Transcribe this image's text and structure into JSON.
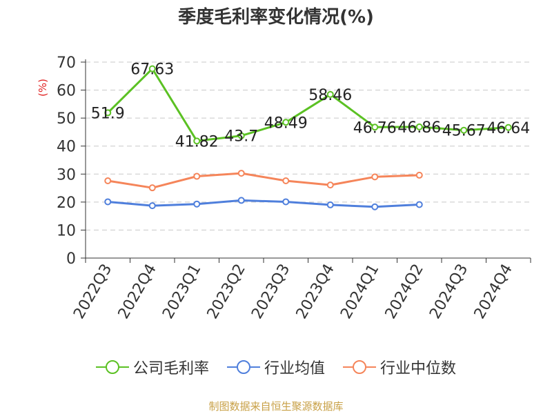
{
  "chart_data": {
    "type": "line",
    "title": "季度毛利率变化情况(%)",
    "ylabel": "(%)",
    "xlabel": "",
    "ylim": [
      0,
      70
    ],
    "yticks": [
      0,
      10,
      20,
      30,
      40,
      50,
      60,
      70
    ],
    "grid": true,
    "categories": [
      "2022Q3",
      "2022Q4",
      "2023Q1",
      "2023Q2",
      "2023Q3",
      "2023Q4",
      "2024Q1",
      "2024Q2",
      "2024Q3",
      "2024Q4"
    ],
    "series": [
      {
        "name": "公司毛利率",
        "color": "#5bc123",
        "values": [
          51.9,
          67.63,
          41.82,
          43.7,
          48.49,
          58.46,
          46.76,
          46.86,
          45.67,
          46.64
        ],
        "data_labels": [
          "51.9",
          "67.63",
          "41.82",
          "43.7",
          "48.49",
          "58.46",
          "46.76",
          "46.86",
          "45.67",
          "46.64"
        ]
      },
      {
        "name": "行业均值",
        "color": "#4f7fdc",
        "values": [
          20.1,
          18.7,
          19.3,
          20.6,
          20.1,
          19.0,
          18.3,
          19.1,
          null,
          null
        ]
      },
      {
        "name": "行业中位数",
        "color": "#f5855a",
        "values": [
          27.6,
          25.1,
          29.2,
          30.3,
          27.6,
          26.1,
          29.0,
          29.6,
          null,
          null
        ]
      }
    ],
    "legend_position": "bottom-center"
  },
  "source_note": "制图数据来自恒生聚源数据库"
}
